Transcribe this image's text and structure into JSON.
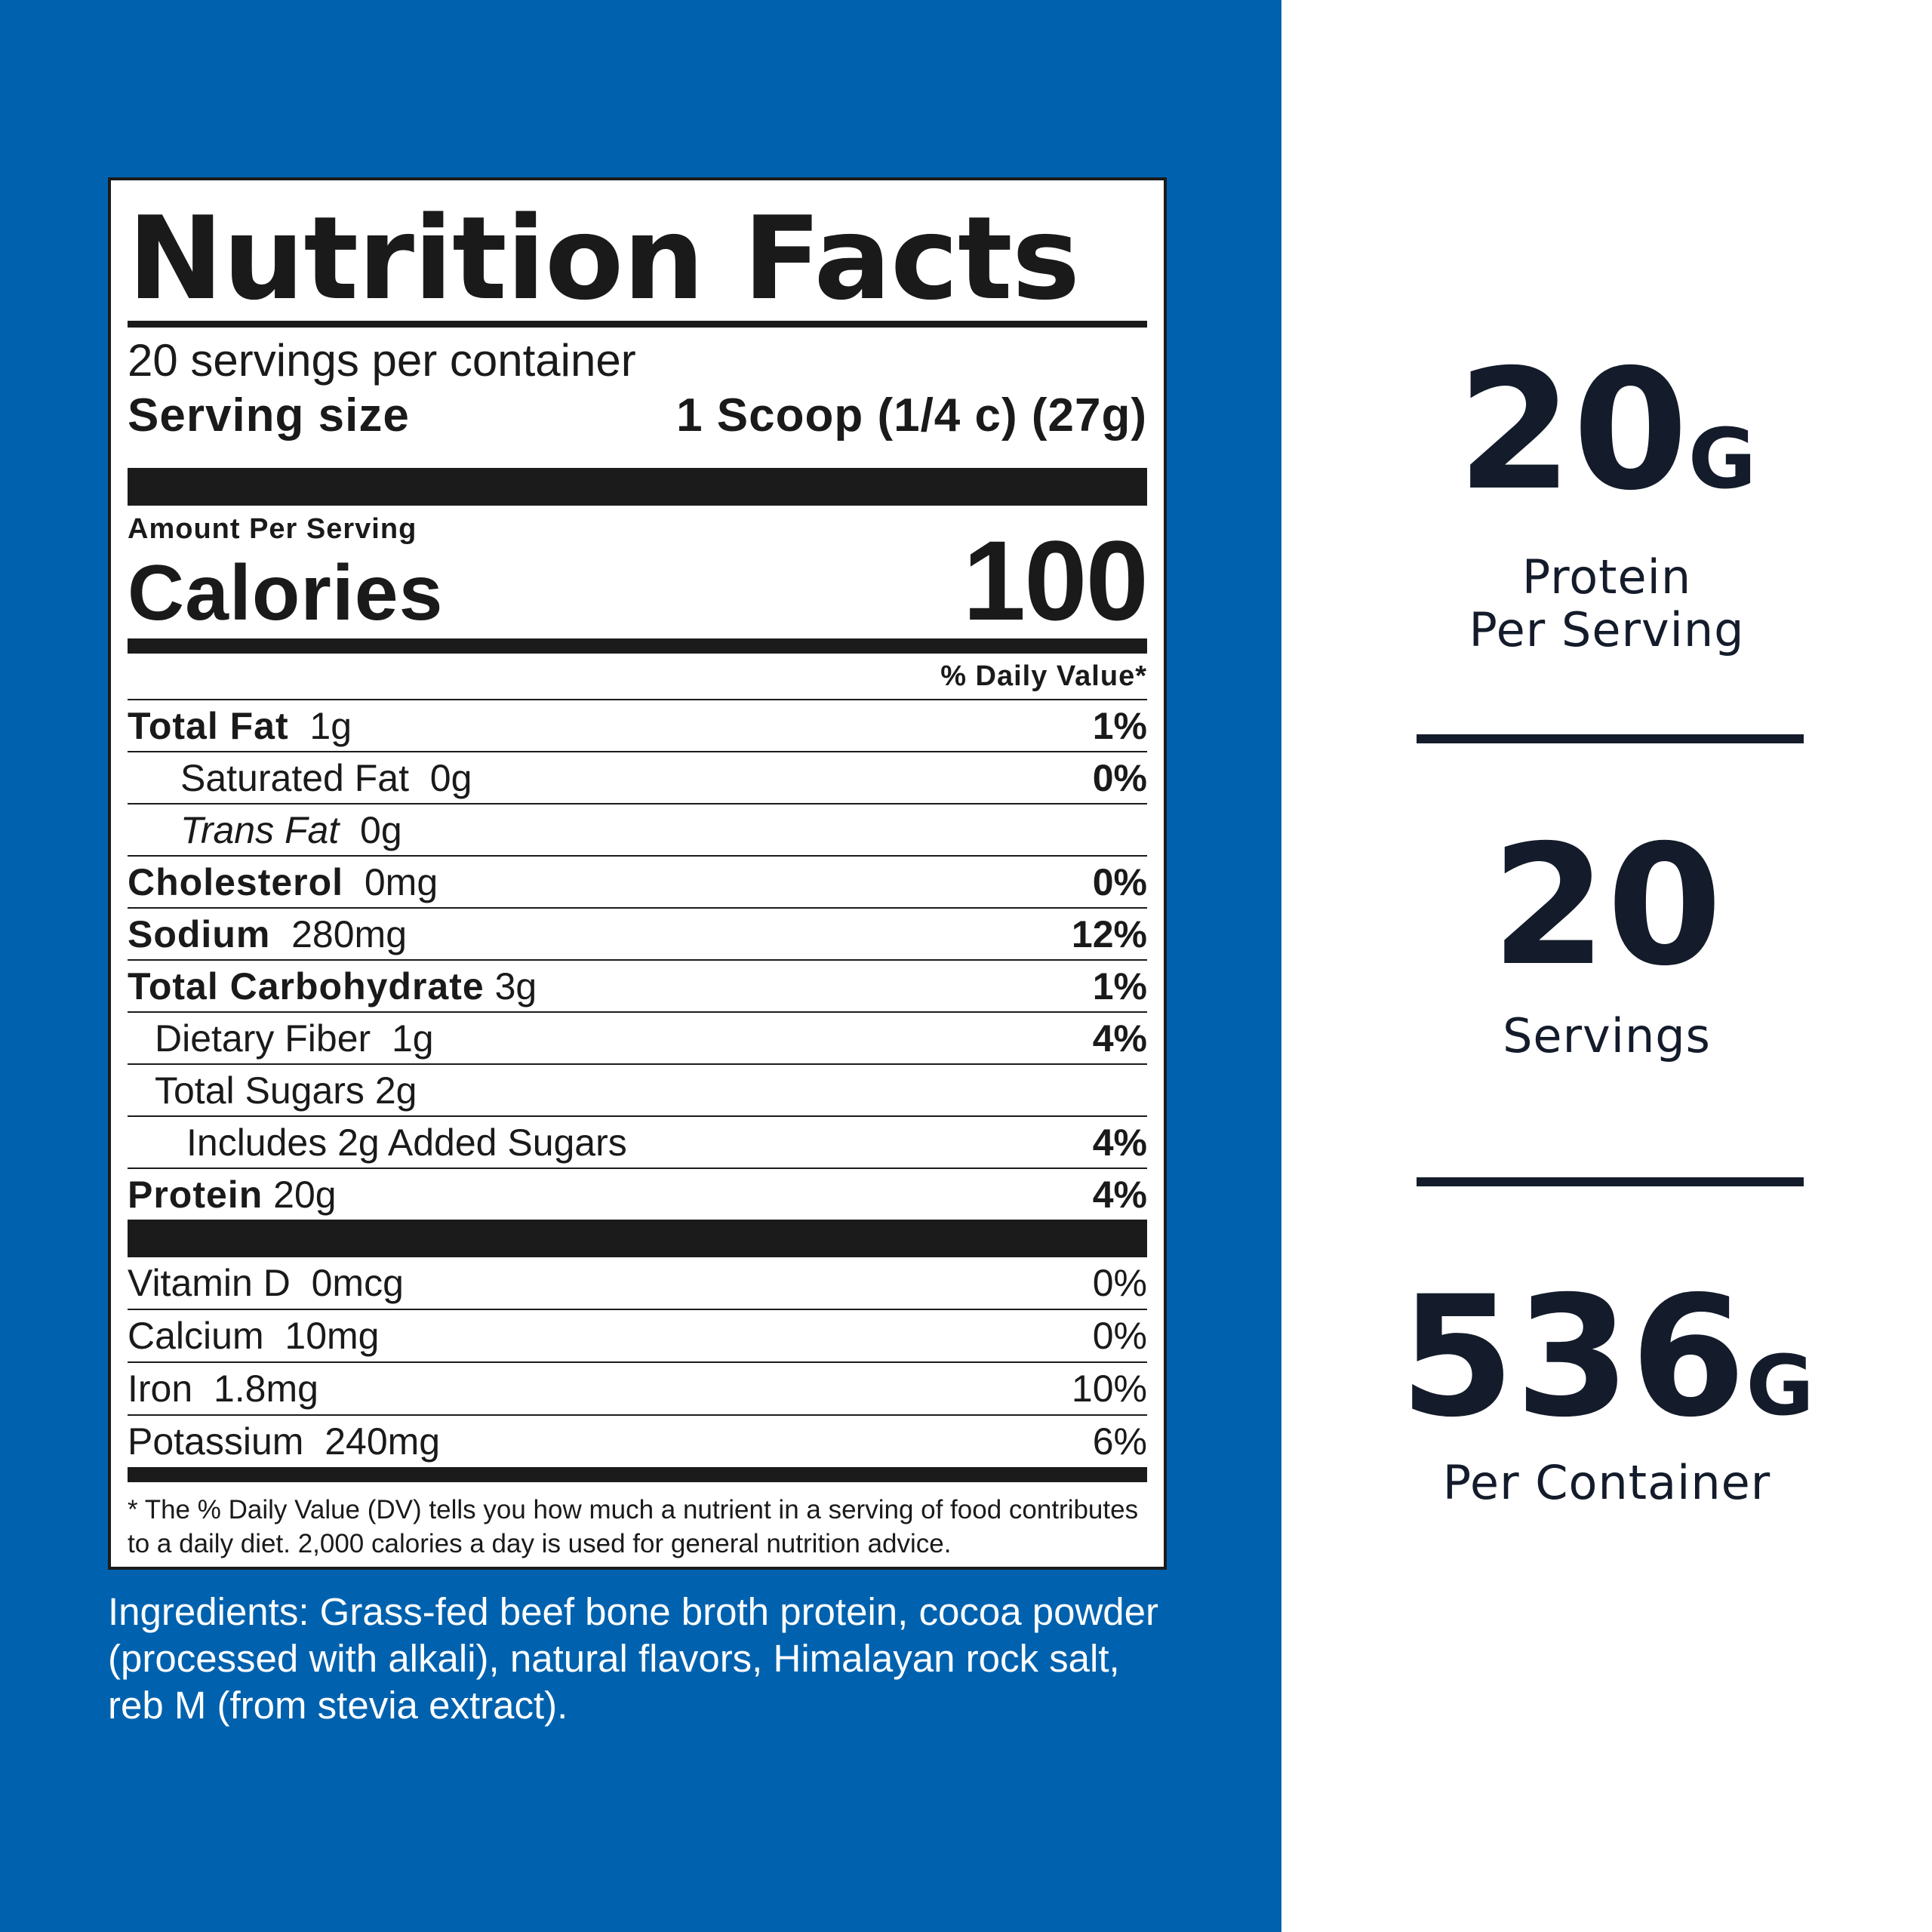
{
  "label": {
    "title": "Nutrition Facts",
    "servings_per_container": "20 servings per container",
    "serving_size_label": "Serving size",
    "serving_size_value": "1 Scoop (1/4 c) (27g)",
    "amount_per_serving": "Amount Per Serving",
    "calories_label": "Calories",
    "calories_value": "100",
    "daily_value_header": "% Daily Value*",
    "nutrients": [
      {
        "name": "Total Fat",
        "amount": "1g",
        "dv": "1%"
      },
      {
        "name": "Saturated Fat",
        "amount": "0g",
        "dv": "0%"
      },
      {
        "name": "Trans Fat",
        "amount": "0g",
        "dv": ""
      },
      {
        "name": "Cholesterol",
        "amount": "0mg",
        "dv": "0%"
      },
      {
        "name": "Sodium",
        "amount": "280mg",
        "dv": "12%"
      },
      {
        "name": "Total Carbohydrate",
        "amount": "3g",
        "dv": "1%"
      },
      {
        "name": "Dietary Fiber",
        "amount": "1g",
        "dv": "4%"
      },
      {
        "name": "Total Sugars",
        "amount": "2g",
        "dv": ""
      },
      {
        "name": "Includes 2g Added Sugars",
        "amount": "",
        "dv": "4%"
      },
      {
        "name": "Protein",
        "amount": "20g",
        "dv": "4%"
      }
    ],
    "vitamins": [
      {
        "name": "Vitamin D",
        "amount": "0mcg",
        "dv": "0%"
      },
      {
        "name": "Calcium",
        "amount": "10mg",
        "dv": "0%"
      },
      {
        "name": "Iron",
        "amount": "1.8mg",
        "dv": "10%"
      },
      {
        "name": "Potassium",
        "amount": "240mg",
        "dv": "6%"
      }
    ],
    "footnote_line1": "* The % Daily Value (DV) tells you how much a nutrient in a serving of food contributes",
    "footnote_line2": "to a daily diet. 2,000 calories a day is used for general nutrition advice."
  },
  "ingredients": {
    "line1": "Ingredients: Grass-fed beef bone broth protein, cocoa powder",
    "line2": "(processed with alkali), natural flavors, Himalayan rock salt,",
    "line3": "reb M (from stevia extract)."
  },
  "stats": {
    "protein_value": "20",
    "protein_unit": "G",
    "protein_label_line1": "Protein",
    "protein_label_line2": "Per Serving",
    "servings_value": "20",
    "servings_label": "Servings",
    "container_value": "536",
    "container_unit": "G",
    "container_label": "Per Container"
  },
  "colors": {
    "panel_blue": "#0062ae",
    "text_dark": "#141c2b",
    "label_black": "#1b1b1b"
  }
}
